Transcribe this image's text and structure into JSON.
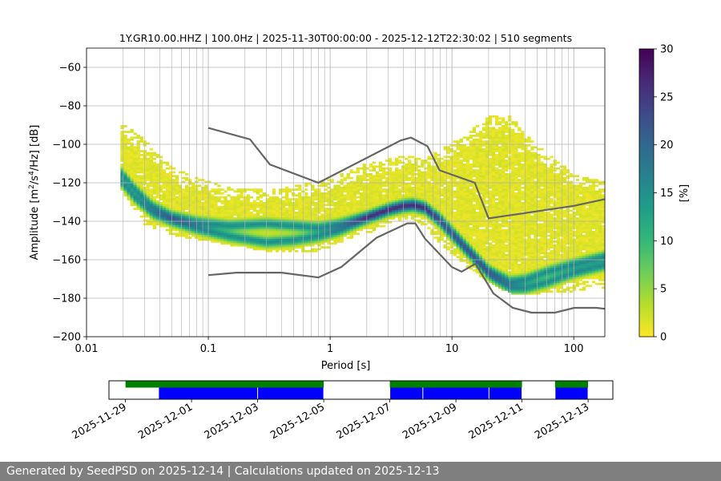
{
  "chart_data": {
    "type": "heatmap",
    "title": "1Y.GR10.00.HHZ | 100.0Hz | 2025-11-30T00:00:00 - 2025-12-12T22:30:02 | 510 segments",
    "xlabel": "Period [s]",
    "ylabel": "Amplitude [m²/s⁴/Hz] [dB]",
    "x_scale": "log",
    "xlim": [
      0.01,
      180
    ],
    "ylim": [
      -200,
      -50
    ],
    "x_ticks": [
      0.01,
      0.1,
      1,
      10,
      100
    ],
    "x_tick_labels": [
      "0.01",
      "0.1",
      "1",
      "10",
      "100"
    ],
    "y_ticks": [
      -200,
      -180,
      -160,
      -140,
      -120,
      -100,
      -80,
      -60
    ],
    "y_tick_labels": [
      "−200",
      "−180",
      "−160",
      "−140",
      "−120",
      "−100",
      "−80",
      "−60"
    ],
    "grid": "x-minor-and-major-vertical, y-major-horizontal",
    "colorbar": {
      "label": "[%]",
      "range": [
        0,
        30
      ],
      "ticks": [
        0,
        5,
        10,
        15,
        20,
        25,
        30
      ],
      "tick_labels": [
        "0",
        "5",
        "10",
        "15",
        "20",
        "25",
        "30"
      ],
      "colors": [
        "#fde725",
        "#b5de2b",
        "#6ece58",
        "#35b779",
        "#1f9e89",
        "#26828e",
        "#31688e",
        "#3e4989",
        "#482878",
        "#440154"
      ]
    },
    "noise_models": {
      "color": "#666666",
      "high_noise_model": {
        "period": [
          0.1,
          0.22,
          0.32,
          0.8,
          3.8,
          4.6,
          6.3,
          7.9,
          15.4,
          20,
          100,
          180
        ],
        "db": [
          -91.5,
          -97.4,
          -110.5,
          -120,
          -98,
          -96.5,
          -101,
          -113.5,
          -120,
          -138.5,
          -132,
          -128.5
        ]
      },
      "low_noise_model": {
        "period": [
          0.1,
          0.17,
          0.4,
          0.8,
          1.24,
          2.4,
          4.3,
          5.0,
          6.0,
          10.0,
          12.0,
          15.6,
          21.9,
          31.6,
          45.0,
          70.0,
          101,
          154,
          180
        ],
        "db": [
          -168,
          -166.7,
          -166.7,
          -169.2,
          -163.7,
          -148.6,
          -141.1,
          -141.1,
          -149.0,
          -163.8,
          -166.2,
          -162.1,
          -177.5,
          -185.0,
          -187.5,
          -187.5,
          -185.0,
          -185.0,
          -185.5
        ]
      }
    },
    "psd_modes": {
      "period": [
        0.019,
        0.025,
        0.035,
        0.05,
        0.08,
        0.15,
        0.3,
        0.5,
        0.8,
        1.2,
        2,
        3,
        4,
        4.8,
        6,
        8,
        12,
        20,
        30,
        40,
        60,
        100,
        180
      ],
      "upper_db": [
        -114,
        -123,
        -132,
        -137,
        -140,
        -142,
        -141,
        -142,
        -143,
        -141,
        -137,
        -133,
        -131,
        -130.5,
        -132,
        -138,
        -150,
        -165,
        -171,
        -170,
        -166,
        -162,
        -158
      ],
      "lower_db": [
        -119,
        -128,
        -136,
        -140,
        -144,
        -148,
        -151,
        -150,
        -148,
        -145,
        -139,
        -135,
        -133,
        -132.5,
        -134,
        -141,
        -153,
        -168,
        -175,
        -175,
        -172,
        -167,
        -163
      ]
    },
    "envelope": {
      "period": [
        0.019,
        0.03,
        0.05,
        0.08,
        0.15,
        0.3,
        0.5,
        0.8,
        1.2,
        2,
        3,
        4.5,
        6,
        8,
        12,
        20,
        30,
        40,
        60,
        100,
        180
      ],
      "top_db": [
        -88,
        -98,
        -112,
        -118,
        -123,
        -124,
        -122,
        -120,
        -116,
        -110,
        -108,
        -106,
        -108,
        -103,
        -97,
        -86,
        -85,
        -95,
        -105,
        -115,
        -120
      ],
      "bottom_db": [
        -124,
        -142,
        -148,
        -150,
        -153,
        -156,
        -156,
        -156,
        -152,
        -147,
        -142,
        -139,
        -143,
        -152,
        -162,
        -172,
        -178,
        -178,
        -178,
        -177,
        -175
      ]
    },
    "coverage": {
      "xaxis_tick_labels": [
        "2025-11-29",
        "2025-12-01",
        "2025-12-03",
        "2025-12-05",
        "2025-12-07",
        "2025-12-09",
        "2025-12-11",
        "2025-12-13"
      ],
      "xaxis_tick_dates": [
        "2025-11-29",
        "2025-12-01",
        "2025-12-03",
        "2025-12-05",
        "2025-12-07",
        "2025-12-09",
        "2025-12-11",
        "2025-12-13"
      ],
      "xlim": [
        "2025-11-28 12:00",
        "2025-12-13 18:00"
      ],
      "data_color": "#008000",
      "psd_color": "#0000ff",
      "data_available": [
        [
          "2025-11-29 00:00",
          "2025-12-05 00:00"
        ],
        [
          "2025-12-07 00:00",
          "2025-12-11 00:00"
        ],
        [
          "2025-12-12 00:00",
          "2025-12-13 00:00"
        ]
      ],
      "psd_available": [
        [
          "2025-11-30 00:00",
          "2025-12-03 00:00"
        ],
        [
          "2025-12-03 00:00",
          "2025-12-05 00:00"
        ],
        [
          "2025-12-07 00:00",
          "2025-12-08 00:00"
        ],
        [
          "2025-12-08 00:00",
          "2025-12-10 00:00"
        ],
        [
          "2025-12-10 00:00",
          "2025-12-11 00:00"
        ],
        [
          "2025-12-12 00:00",
          "2025-12-13 00:00"
        ]
      ]
    }
  },
  "footer": {
    "text": "Generated by SeedPSD on 2025-12-14 | Calculations updated on 2025-12-13"
  }
}
